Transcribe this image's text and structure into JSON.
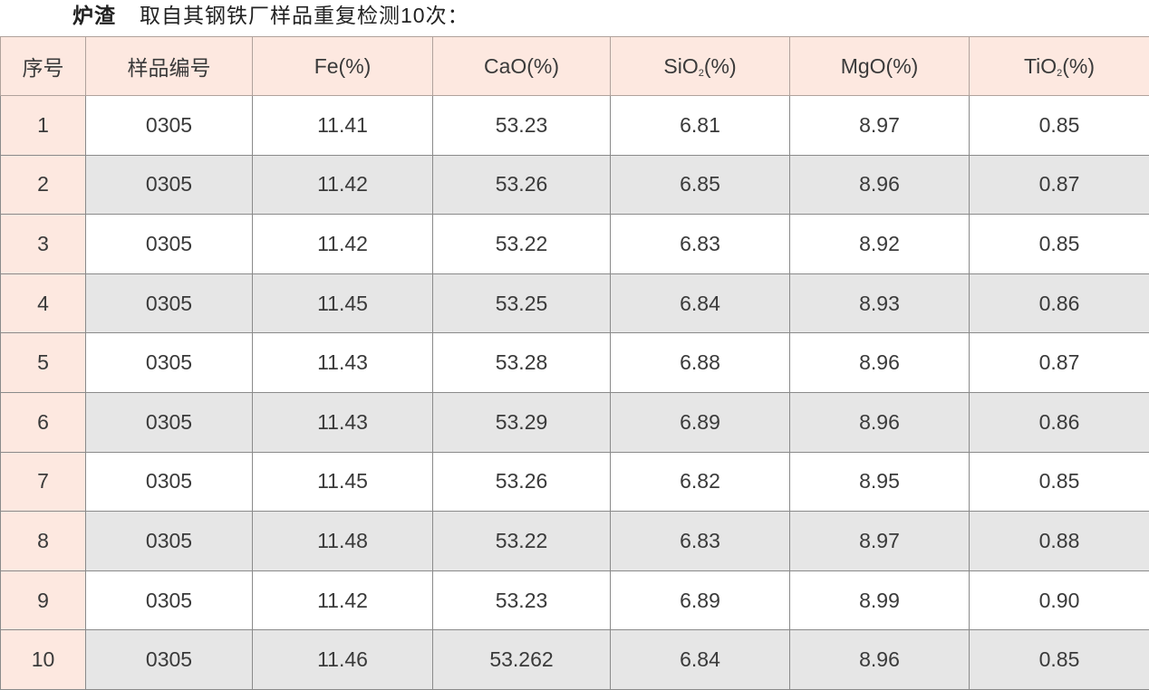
{
  "title": {
    "label": "炉渣",
    "text": "取自其钢铁厂样品重复检测10次："
  },
  "colors": {
    "header_bg": "#fde8e0",
    "alt_row_bg": "#e6e6e6",
    "border": "#8a8a8a"
  },
  "headers": [
    {
      "base": "序号",
      "sub": "",
      "suffix": ""
    },
    {
      "base": "样品编号",
      "sub": "",
      "suffix": ""
    },
    {
      "base": "Fe",
      "sub": "",
      "suffix": "(%)"
    },
    {
      "base": "CaO",
      "sub": "",
      "suffix": "(%)"
    },
    {
      "base": "SiO",
      "sub": "2",
      "suffix": "(%)"
    },
    {
      "base": "MgO",
      "sub": "",
      "suffix": "(%)"
    },
    {
      "base": "TiO",
      "sub": "2",
      "suffix": "(%)"
    }
  ],
  "rows": [
    [
      "1",
      "0305",
      "11.41",
      "53.23",
      "6.81",
      "8.97",
      "0.85"
    ],
    [
      "2",
      "0305",
      "11.42",
      "53.26",
      "6.85",
      "8.96",
      "0.87"
    ],
    [
      "3",
      "0305",
      "11.42",
      "53.22",
      "6.83",
      "8.92",
      "0.85"
    ],
    [
      "4",
      "0305",
      "11.45",
      "53.25",
      "6.84",
      "8.93",
      "0.86"
    ],
    [
      "5",
      "0305",
      "11.43",
      "53.28",
      "6.88",
      "8.96",
      "0.87"
    ],
    [
      "6",
      "0305",
      "11.43",
      "53.29",
      "6.89",
      "8.96",
      "0.86"
    ],
    [
      "7",
      "0305",
      "11.45",
      "53.26",
      "6.82",
      "8.95",
      "0.85"
    ],
    [
      "8",
      "0305",
      "11.48",
      "53.22",
      "6.83",
      "8.97",
      "0.88"
    ],
    [
      "9",
      "0305",
      "11.42",
      "53.23",
      "6.89",
      "8.99",
      "0.90"
    ],
    [
      "10",
      "0305",
      "11.46",
      "53.262",
      "6.84",
      "8.96",
      "0.85"
    ]
  ]
}
